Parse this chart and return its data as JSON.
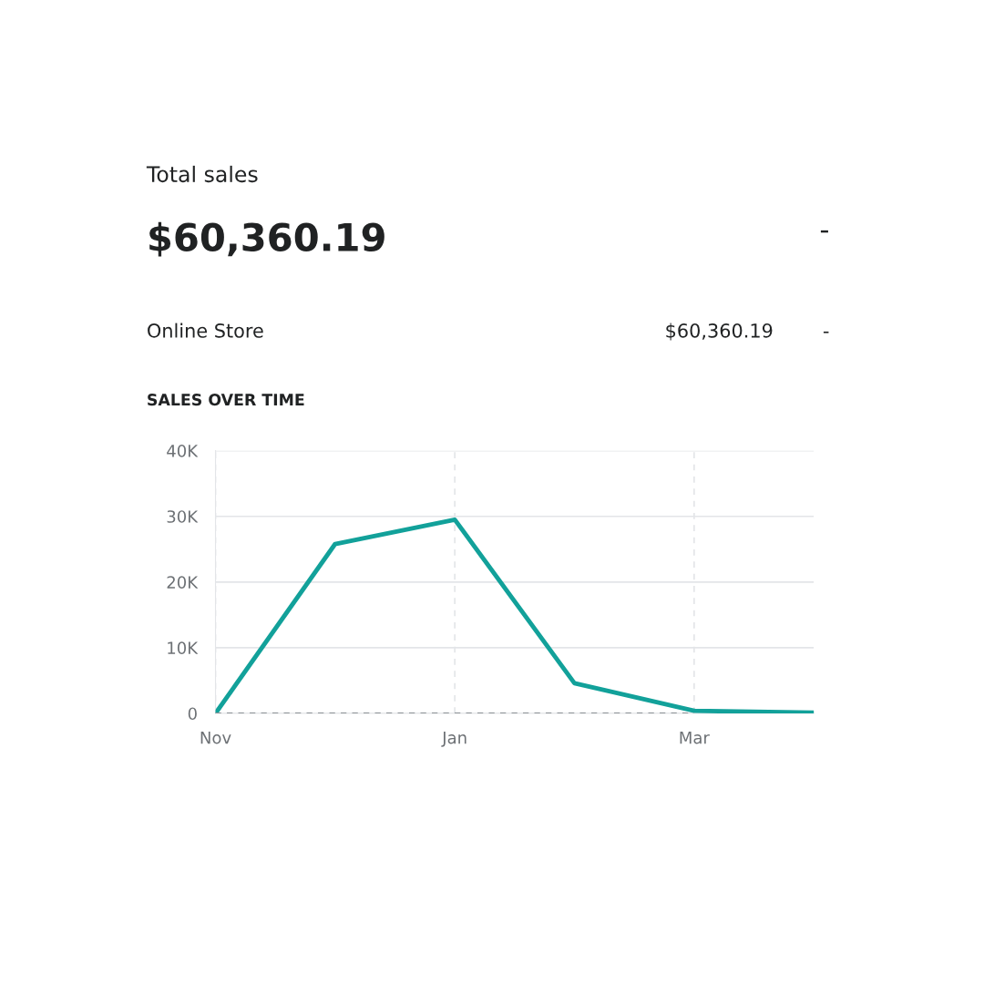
{
  "chart_data": {
    "type": "line",
    "title": "Total sales",
    "subtitle": "$60,360.19",
    "annotations": [
      "-",
      "Online Store",
      "$60,360.19",
      "-",
      "SALES OVER TIME"
    ],
    "categories": [
      "Nov",
      null,
      "Jan",
      null,
      "Mar",
      null
    ],
    "series": [
      {
        "color": "#12a19a",
        "values": [
          0,
          25800,
          29500,
          4600,
          400,
          100
        ]
      },
      {
        "color": "#8c9196",
        "line_style": "dashed",
        "values": [
          0,
          0,
          0,
          0,
          0,
          null
        ]
      }
    ],
    "ylim": [
      0,
      40000
    ],
    "yticks": [
      0,
      {
        "value": 10000,
        "label": "10K"
      },
      {
        "value": 20000,
        "label": "20K"
      },
      {
        "value": 30000,
        "label": "30K"
      },
      {
        "value": 40000,
        "label": "40K"
      }
    ],
    "grid": true,
    "legend": false
  }
}
